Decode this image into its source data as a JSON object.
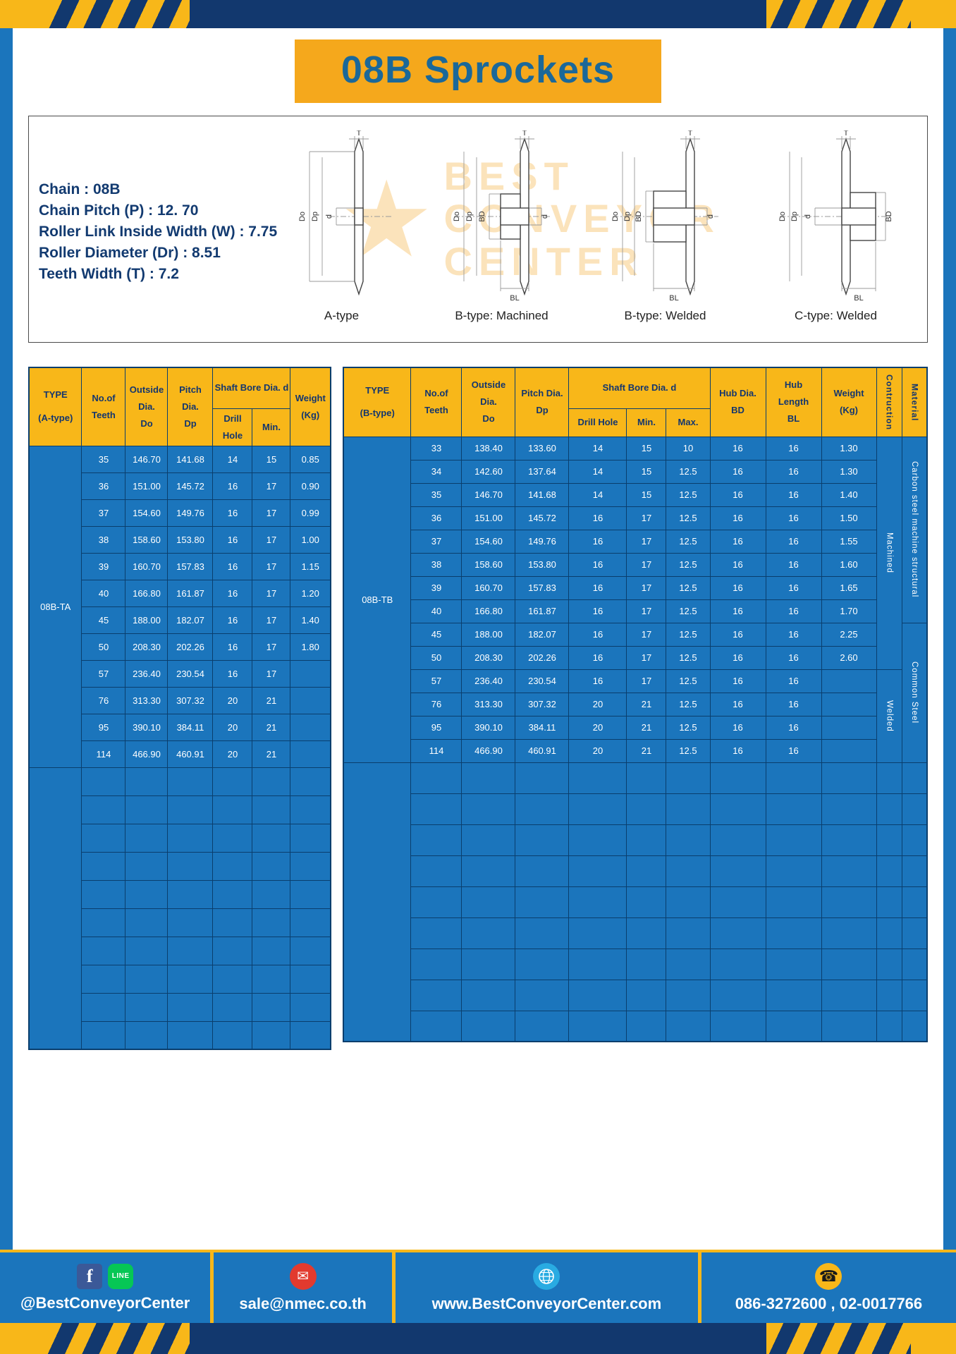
{
  "title": "08B Sprockets",
  "specs": [
    "Chain : 08B",
    "Chain Pitch (P) : 12. 70",
    "Roller Link Inside Width (W) : 7.75",
    "Roller Diameter (Dr) : 8.51",
    "Teeth Width (T) : 7.2"
  ],
  "drawings": {
    "watermark": [
      "BEST",
      "CONVEYOR",
      "CENTER"
    ],
    "watermark_star": "★",
    "captions": [
      "A-type",
      "B-type: Machined",
      "B-type: Welded",
      "C-type: Welded"
    ],
    "dims": {
      "t": "T",
      "outer": "Do",
      "pitch": "Dp",
      "bore": "d",
      "hub_dia": "BD",
      "hub_len": "BL"
    }
  },
  "table_a": {
    "headers": {
      "type": "TYPE\n(A-type)",
      "teeth": "No.of\nTeeth",
      "outside": "Outside\nDia.\nDo",
      "pitch": "Pitch Dia.\nDp",
      "shaft_bore": "Shaft Bore Dia. d",
      "drill_hole": "Drill Hole",
      "min": "Min.",
      "weight": "Weight\n(Kg)"
    },
    "type_value": "08B-TA",
    "rows": [
      [
        "35",
        "146.70",
        "141.68",
        "14",
        "15",
        "0.85"
      ],
      [
        "36",
        "151.00",
        "145.72",
        "16",
        "17",
        "0.90"
      ],
      [
        "37",
        "154.60",
        "149.76",
        "16",
        "17",
        "0.99"
      ],
      [
        "38",
        "158.60",
        "153.80",
        "16",
        "17",
        "1.00"
      ],
      [
        "39",
        "160.70",
        "157.83",
        "16",
        "17",
        "1.15"
      ],
      [
        "40",
        "166.80",
        "161.87",
        "16",
        "17",
        "1.20"
      ],
      [
        "45",
        "188.00",
        "182.07",
        "16",
        "17",
        "1.40"
      ],
      [
        "50",
        "208.30",
        "202.26",
        "16",
        "17",
        "1.80"
      ],
      [
        "57",
        "236.40",
        "230.54",
        "16",
        "17",
        ""
      ],
      [
        "76",
        "313.30",
        "307.32",
        "20",
        "21",
        ""
      ],
      [
        "95",
        "390.10",
        "384.11",
        "20",
        "21",
        ""
      ],
      [
        "114",
        "466.90",
        "460.91",
        "20",
        "21",
        ""
      ]
    ],
    "empty_rows": 10
  },
  "table_b": {
    "headers": {
      "type": "TYPE\n(B-type)",
      "teeth": "No.of\nTeeth",
      "outside": "Outside\nDia.\nDo",
      "pitch": "Pitch Dia.\nDp",
      "shaft_bore": "Shaft Bore Dia. d",
      "drill_hole": "Drill Hole",
      "min": "Min.",
      "max": "Max.",
      "hub_dia": "Hub Dia.\nBD",
      "hub_len": "Hub\nLength\nBL",
      "weight": "Weight\n(Kg)",
      "construction": "Contruction",
      "material": "Material"
    },
    "type_value": "08B-TB",
    "rows": [
      [
        "33",
        "138.40",
        "133.60",
        "14",
        "15",
        "10",
        "16",
        "16",
        "1.30"
      ],
      [
        "34",
        "142.60",
        "137.64",
        "14",
        "15",
        "12.5",
        "16",
        "16",
        "1.30"
      ],
      [
        "35",
        "146.70",
        "141.68",
        "14",
        "15",
        "12.5",
        "16",
        "16",
        "1.40"
      ],
      [
        "36",
        "151.00",
        "145.72",
        "16",
        "17",
        "12.5",
        "16",
        "16",
        "1.50"
      ],
      [
        "37",
        "154.60",
        "149.76",
        "16",
        "17",
        "12.5",
        "16",
        "16",
        "1.55"
      ],
      [
        "38",
        "158.60",
        "153.80",
        "16",
        "17",
        "12.5",
        "16",
        "16",
        "1.60"
      ],
      [
        "39",
        "160.70",
        "157.83",
        "16",
        "17",
        "12.5",
        "16",
        "16",
        "1.65"
      ],
      [
        "40",
        "166.80",
        "161.87",
        "16",
        "17",
        "12.5",
        "16",
        "16",
        "1.70"
      ],
      [
        "45",
        "188.00",
        "182.07",
        "16",
        "17",
        "12.5",
        "16",
        "16",
        "2.25"
      ],
      [
        "50",
        "208.30",
        "202.26",
        "16",
        "17",
        "12.5",
        "16",
        "16",
        "2.60"
      ],
      [
        "57",
        "236.40",
        "230.54",
        "16",
        "17",
        "12.5",
        "16",
        "16",
        ""
      ],
      [
        "76",
        "313.30",
        "307.32",
        "20",
        "21",
        "12.5",
        "16",
        "16",
        ""
      ],
      [
        "95",
        "390.10",
        "384.11",
        "20",
        "21",
        "12.5",
        "16",
        "16",
        ""
      ],
      [
        "114",
        "466.90",
        "460.91",
        "20",
        "21",
        "12.5",
        "16",
        "16",
        ""
      ]
    ],
    "construction": [
      {
        "label": "Machined",
        "start": 0,
        "span": 10
      },
      {
        "label": "Welded",
        "start": 10,
        "span": 4
      }
    ],
    "material": [
      {
        "label": "Carbon steel  machine structural",
        "start": 0,
        "span": 8
      },
      {
        "label": "Common  Steel",
        "start": 8,
        "span": 6
      }
    ],
    "empty_rows": 9
  },
  "footer": {
    "icons": {
      "facebook": "f",
      "line": "LINE",
      "email": "✉",
      "phone": "☎"
    },
    "items": [
      "@BestConveyorCenter",
      "sale@nmec.co.th",
      "www.BestConveyorCenter.com",
      "086-3272600 , 02-0017766"
    ]
  }
}
